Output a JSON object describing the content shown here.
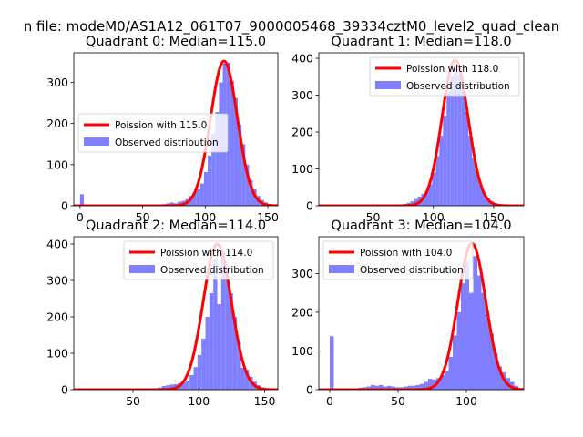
{
  "figure": {
    "suptitle": "n file: modeM0/AS1A12_061T07_9000005468_39334cztM0_level2_quad_clean"
  },
  "colors": {
    "fit": "#ff0000",
    "observed": "#7f7fff"
  },
  "chart_data": [
    {
      "type": "bar",
      "title": "Quadrant 0: Median=115.0",
      "legend_loc": "center-left",
      "xlim": [
        -5,
        158
      ],
      "ylim": [
        0,
        372
      ],
      "xticks": [
        0,
        50,
        100,
        150
      ],
      "yticks": [
        0,
        100,
        200,
        300
      ],
      "series": [
        {
          "name": "Poission with 115.0",
          "type": "line",
          "mean": 115.0,
          "peak": 352
        },
        {
          "name": "Observed distribution",
          "type": "hist",
          "bin_width": 3,
          "bins": [
            [
              0,
              28
            ],
            [
              3,
              3
            ],
            [
              6,
              2
            ],
            [
              9,
              1
            ],
            [
              12,
              1
            ],
            [
              15,
              1
            ],
            [
              18,
              1
            ],
            [
              21,
              1
            ],
            [
              24,
              1
            ],
            [
              27,
              1
            ],
            [
              30,
              1
            ],
            [
              33,
              1
            ],
            [
              36,
              1
            ],
            [
              39,
              1
            ],
            [
              42,
              1
            ],
            [
              45,
              1
            ],
            [
              48,
              1
            ],
            [
              51,
              1
            ],
            [
              54,
              2
            ],
            [
              57,
              2
            ],
            [
              60,
              3
            ],
            [
              63,
              3
            ],
            [
              66,
              4
            ],
            [
              69,
              6
            ],
            [
              72,
              8
            ],
            [
              75,
              6
            ],
            [
              78,
              10
            ],
            [
              81,
              12
            ],
            [
              84,
              16
            ],
            [
              87,
              24
            ],
            [
              90,
              32
            ],
            [
              93,
              40
            ],
            [
              96,
              54
            ],
            [
              99,
              82
            ],
            [
              102,
              122
            ],
            [
              105,
              175
            ],
            [
              108,
              228
            ],
            [
              111,
              300
            ],
            [
              114,
              346
            ],
            [
              117,
              348
            ],
            [
              120,
              304
            ],
            [
              123,
              262
            ],
            [
              126,
              198
            ],
            [
              129,
              150
            ],
            [
              132,
              100
            ],
            [
              135,
              62
            ],
            [
              138,
              40
            ],
            [
              141,
              24
            ],
            [
              144,
              14
            ],
            [
              147,
              8
            ],
            [
              150,
              4
            ],
            [
              153,
              2
            ]
          ]
        }
      ]
    },
    {
      "type": "bar",
      "title": "Quadrant 1: Median=118.0",
      "legend_loc": "upper-right",
      "xlim": [
        5,
        175
      ],
      "ylim": [
        0,
        415
      ],
      "xticks": [
        50,
        100,
        150
      ],
      "yticks": [
        0,
        100,
        200,
        300,
        400
      ],
      "series": [
        {
          "name": "Poission with 118.0",
          "type": "line",
          "mean": 118.0,
          "peak": 395
        },
        {
          "name": "Observed distribution",
          "type": "hist",
          "bin_width": 3,
          "bins": [
            [
              12,
              1
            ],
            [
              15,
              1
            ],
            [
              18,
              1
            ],
            [
              21,
              1
            ],
            [
              24,
              1
            ],
            [
              27,
              1
            ],
            [
              30,
              1
            ],
            [
              33,
              1
            ],
            [
              36,
              1
            ],
            [
              39,
              1
            ],
            [
              42,
              1
            ],
            [
              45,
              1
            ],
            [
              48,
              1
            ],
            [
              51,
              1
            ],
            [
              54,
              1
            ],
            [
              57,
              2
            ],
            [
              60,
              2
            ],
            [
              63,
              2
            ],
            [
              66,
              3
            ],
            [
              69,
              3
            ],
            [
              72,
              4
            ],
            [
              75,
              5
            ],
            [
              78,
              8
            ],
            [
              81,
              12
            ],
            [
              84,
              18
            ],
            [
              87,
              25
            ],
            [
              90,
              32
            ],
            [
              93,
              40
            ],
            [
              96,
              58
            ],
            [
              99,
              90
            ],
            [
              102,
              135
            ],
            [
              105,
              190
            ],
            [
              108,
              245
            ],
            [
              111,
              310
            ],
            [
              114,
              352
            ],
            [
              117,
              378
            ],
            [
              120,
              355
            ],
            [
              123,
              312
            ],
            [
              126,
              255
            ],
            [
              129,
              190
            ],
            [
              132,
              130
            ],
            [
              135,
              85
            ],
            [
              138,
              55
            ],
            [
              141,
              32
            ],
            [
              144,
              20
            ],
            [
              147,
              12
            ],
            [
              150,
              7
            ],
            [
              153,
              4
            ],
            [
              156,
              2
            ],
            [
              159,
              1
            ],
            [
              162,
              1
            ],
            [
              165,
              1
            ],
            [
              168,
              1
            ]
          ]
        }
      ]
    },
    {
      "type": "bar",
      "title": "Quadrant 2: Median=114.0",
      "legend_loc": "upper-right",
      "xlim": [
        5,
        160
      ],
      "ylim": [
        0,
        420
      ],
      "xticks": [
        50,
        100,
        150
      ],
      "yticks": [
        0,
        100,
        200,
        300,
        400
      ],
      "series": [
        {
          "name": "Poission with 114.0",
          "type": "line",
          "mean": 114.0,
          "peak": 400
        },
        {
          "name": "Observed distribution",
          "type": "hist",
          "bin_width": 3,
          "bins": [
            [
              12,
              1
            ],
            [
              15,
              1
            ],
            [
              18,
              1
            ],
            [
              21,
              1
            ],
            [
              24,
              1
            ],
            [
              27,
              1
            ],
            [
              30,
              1
            ],
            [
              33,
              1
            ],
            [
              36,
              1
            ],
            [
              39,
              1
            ],
            [
              42,
              1
            ],
            [
              45,
              1
            ],
            [
              48,
              1
            ],
            [
              51,
              1
            ],
            [
              54,
              2
            ],
            [
              57,
              2
            ],
            [
              60,
              2
            ],
            [
              63,
              3
            ],
            [
              66,
              4
            ],
            [
              69,
              6
            ],
            [
              72,
              10
            ],
            [
              75,
              12
            ],
            [
              78,
              14
            ],
            [
              81,
              15
            ],
            [
              84,
              18
            ],
            [
              87,
              20
            ],
            [
              90,
              24
            ],
            [
              93,
              40
            ],
            [
              96,
              62
            ],
            [
              99,
              95
            ],
            [
              102,
              140
            ],
            [
              105,
              200
            ],
            [
              108,
              265
            ],
            [
              111,
              360
            ],
            [
              114,
              235
            ],
            [
              117,
              380
            ],
            [
              120,
              330
            ],
            [
              123,
              265
            ],
            [
              126,
              200
            ],
            [
              129,
              130
            ],
            [
              132,
              60
            ],
            [
              135,
              55
            ],
            [
              138,
              35
            ],
            [
              141,
              22
            ],
            [
              144,
              12
            ],
            [
              147,
              6
            ],
            [
              150,
              3
            ],
            [
              153,
              2
            ]
          ]
        }
      ]
    },
    {
      "type": "bar",
      "title": "Quadrant 3: Median=104.0",
      "legend_loc": "upper-left",
      "xlim": [
        -8,
        142
      ],
      "ylim": [
        0,
        395
      ],
      "xticks": [
        0,
        50,
        100
      ],
      "yticks": [
        0,
        100,
        200,
        300
      ],
      "series": [
        {
          "name": "Poission with 104.0",
          "type": "line",
          "mean": 104.0,
          "peak": 378
        },
        {
          "name": "Observed distribution",
          "type": "hist",
          "bin_width": 3,
          "bins": [
            [
              0,
              138
            ],
            [
              3,
              2
            ],
            [
              6,
              1
            ],
            [
              9,
              2
            ],
            [
              12,
              2
            ],
            [
              15,
              3
            ],
            [
              18,
              3
            ],
            [
              21,
              5
            ],
            [
              24,
              6
            ],
            [
              27,
              8
            ],
            [
              30,
              12
            ],
            [
              33,
              10
            ],
            [
              36,
              12
            ],
            [
              39,
              8
            ],
            [
              42,
              10
            ],
            [
              45,
              8
            ],
            [
              48,
              6
            ],
            [
              51,
              6
            ],
            [
              54,
              8
            ],
            [
              57,
              10
            ],
            [
              60,
              10
            ],
            [
              63,
              12
            ],
            [
              66,
              15
            ],
            [
              69,
              20
            ],
            [
              72,
              28
            ],
            [
              75,
              26
            ],
            [
              78,
              30
            ],
            [
              81,
              38
            ],
            [
              84,
              48
            ],
            [
              87,
              85
            ],
            [
              90,
              140
            ],
            [
              93,
              200
            ],
            [
              96,
              275
            ],
            [
              99,
              330
            ],
            [
              102,
              250
            ],
            [
              105,
              345
            ],
            [
              108,
              295
            ],
            [
              111,
              250
            ],
            [
              114,
              195
            ],
            [
              117,
              145
            ],
            [
              120,
              95
            ],
            [
              123,
              60
            ],
            [
              126,
              45
            ],
            [
              129,
              30
            ],
            [
              132,
              20
            ],
            [
              135,
              10
            ]
          ]
        }
      ]
    }
  ]
}
